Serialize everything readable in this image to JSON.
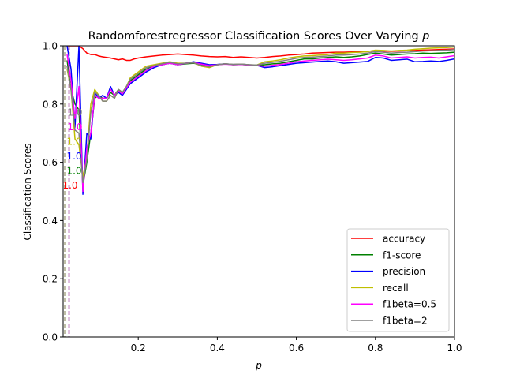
{
  "chart_data": {
    "type": "line",
    "title": "Randomforestregressor Classification Scores Over Varying p",
    "title_main": "Randomforestregressor Classification Scores Over Varying ",
    "title_var": "p",
    "xlabel": "p",
    "ylabel": "Classification Scores",
    "xlim": [
      0.01,
      1.0
    ],
    "ylim": [
      0.0,
      1.0
    ],
    "xticks": [
      0.2,
      0.4,
      0.6,
      0.8,
      1.0
    ],
    "xtick_labels": [
      "0.2",
      "0.4",
      "0.6",
      "0.8",
      "1.0"
    ],
    "yticks": [
      0.0,
      0.2,
      0.4,
      0.6,
      0.8,
      1.0
    ],
    "ytick_labels": [
      "0.0",
      "0.2",
      "0.4",
      "0.6",
      "0.8",
      "1.0"
    ],
    "grid": false,
    "legend_position": "lower-right",
    "x": [
      0.02,
      0.03,
      0.04,
      0.05,
      0.06,
      0.07,
      0.08,
      0.09,
      0.1,
      0.11,
      0.12,
      0.13,
      0.14,
      0.15,
      0.16,
      0.17,
      0.18,
      0.19,
      0.2,
      0.22,
      0.24,
      0.26,
      0.28,
      0.3,
      0.32,
      0.34,
      0.36,
      0.38,
      0.4,
      0.42,
      0.44,
      0.46,
      0.48,
      0.5,
      0.52,
      0.54,
      0.56,
      0.58,
      0.6,
      0.62,
      0.64,
      0.66,
      0.68,
      0.7,
      0.72,
      0.74,
      0.76,
      0.78,
      0.8,
      0.82,
      0.84,
      0.86,
      0.88,
      0.9,
      0.92,
      0.94,
      0.96,
      0.98,
      1.0
    ],
    "series": [
      {
        "name": "accuracy",
        "color": "#ff0000",
        "values": [
          1.0,
          1.0,
          1.0,
          1.0,
          0.99,
          0.975,
          0.97,
          0.97,
          0.965,
          0.962,
          0.96,
          0.958,
          0.955,
          0.952,
          0.955,
          0.95,
          0.95,
          0.955,
          0.958,
          0.962,
          0.965,
          0.968,
          0.97,
          0.972,
          0.97,
          0.968,
          0.965,
          0.963,
          0.962,
          0.963,
          0.96,
          0.962,
          0.96,
          0.958,
          0.96,
          0.963,
          0.965,
          0.968,
          0.97,
          0.972,
          0.975,
          0.976,
          0.977,
          0.978,
          0.978,
          0.979,
          0.98,
          0.981,
          0.983,
          0.982,
          0.981,
          0.982,
          0.983,
          0.984,
          0.985,
          0.986,
          0.987,
          0.988,
          0.989
        ]
      },
      {
        "name": "f1-score",
        "color": "#008000",
        "values": [
          0.95,
          0.85,
          0.8,
          0.78,
          0.52,
          0.6,
          0.7,
          0.82,
          0.83,
          0.82,
          0.82,
          0.84,
          0.83,
          0.85,
          0.84,
          0.86,
          0.88,
          0.89,
          0.9,
          0.92,
          0.93,
          0.935,
          0.94,
          0.935,
          0.938,
          0.94,
          0.935,
          0.93,
          0.935,
          0.938,
          0.935,
          0.936,
          0.934,
          0.932,
          0.935,
          0.938,
          0.94,
          0.945,
          0.95,
          0.955,
          0.955,
          0.958,
          0.96,
          0.962,
          0.96,
          0.962,
          0.965,
          0.97,
          0.975,
          0.972,
          0.968,
          0.97,
          0.972,
          0.973,
          0.975,
          0.974,
          0.975,
          0.976,
          0.978
        ]
      },
      {
        "name": "precision",
        "color": "#0000ff",
        "values": [
          1.0,
          0.92,
          0.72,
          1.0,
          0.49,
          0.7,
          0.68,
          0.84,
          0.82,
          0.83,
          0.82,
          0.86,
          0.83,
          0.84,
          0.83,
          0.85,
          0.87,
          0.88,
          0.89,
          0.91,
          0.925,
          0.935,
          0.94,
          0.935,
          0.94,
          0.945,
          0.94,
          0.935,
          0.936,
          0.938,
          0.936,
          0.937,
          0.935,
          0.933,
          0.925,
          0.928,
          0.932,
          0.936,
          0.94,
          0.942,
          0.944,
          0.946,
          0.948,
          0.945,
          0.94,
          0.942,
          0.944,
          0.946,
          0.96,
          0.958,
          0.95,
          0.952,
          0.954,
          0.945,
          0.946,
          0.948,
          0.946,
          0.95,
          0.955
        ]
      },
      {
        "name": "recall",
        "color": "#bfbf00",
        "values": [
          0.92,
          0.85,
          0.68,
          0.66,
          0.55,
          0.62,
          0.8,
          0.85,
          0.83,
          0.81,
          0.81,
          0.83,
          0.82,
          0.85,
          0.84,
          0.86,
          0.89,
          0.9,
          0.91,
          0.93,
          0.935,
          0.94,
          0.945,
          0.94,
          0.94,
          0.942,
          0.93,
          0.925,
          0.935,
          0.938,
          0.936,
          0.937,
          0.935,
          0.934,
          0.945,
          0.948,
          0.952,
          0.958,
          0.962,
          0.965,
          0.966,
          0.968,
          0.97,
          0.975,
          0.975,
          0.977,
          0.978,
          0.98,
          0.985,
          0.984,
          0.982,
          0.984,
          0.985,
          0.988,
          0.99,
          0.992,
          0.993,
          0.994,
          0.996
        ]
      },
      {
        "name": "f1beta=0.5",
        "color": "#ff00ff",
        "values": [
          0.97,
          0.88,
          0.75,
          0.86,
          0.5,
          0.65,
          0.7,
          0.83,
          0.82,
          0.82,
          0.82,
          0.85,
          0.83,
          0.845,
          0.835,
          0.855,
          0.875,
          0.885,
          0.895,
          0.915,
          0.93,
          0.935,
          0.94,
          0.935,
          0.94,
          0.942,
          0.937,
          0.932,
          0.935,
          0.937,
          0.935,
          0.936,
          0.934,
          0.932,
          0.93,
          0.933,
          0.936,
          0.94,
          0.945,
          0.948,
          0.95,
          0.952,
          0.954,
          0.952,
          0.95,
          0.952,
          0.955,
          0.958,
          0.968,
          0.965,
          0.958,
          0.96,
          0.962,
          0.958,
          0.96,
          0.961,
          0.958,
          0.962,
          0.966
        ]
      },
      {
        "name": "f1beta=2",
        "color": "#808080",
        "values": [
          0.93,
          0.85,
          0.71,
          0.7,
          0.53,
          0.61,
          0.77,
          0.84,
          0.83,
          0.81,
          0.81,
          0.83,
          0.82,
          0.85,
          0.84,
          0.86,
          0.885,
          0.895,
          0.905,
          0.925,
          0.932,
          0.938,
          0.943,
          0.938,
          0.94,
          0.942,
          0.932,
          0.928,
          0.935,
          0.938,
          0.936,
          0.937,
          0.935,
          0.934,
          0.94,
          0.943,
          0.947,
          0.952,
          0.957,
          0.96,
          0.961,
          0.963,
          0.965,
          0.968,
          0.968,
          0.97,
          0.972,
          0.975,
          0.98,
          0.978,
          0.975,
          0.977,
          0.978,
          0.98,
          0.982,
          0.983,
          0.984,
          0.985,
          0.987
        ]
      }
    ],
    "vlines": [
      {
        "x": 0.015,
        "color": "#ff0000"
      },
      {
        "x": 0.015,
        "color": "#008000"
      },
      {
        "x": 0.015,
        "color": "#0000ff"
      },
      {
        "x": 0.015,
        "color": "#bfbf00"
      },
      {
        "x": 0.025,
        "color": "#ff00ff"
      },
      {
        "x": 0.025,
        "color": "#808080"
      }
    ],
    "annotations": [
      {
        "text": "1.0",
        "x": 0.028,
        "y": 0.51,
        "color": "#ff0000"
      },
      {
        "text": "1.0",
        "x": 0.038,
        "y": 0.56,
        "color": "#008000"
      },
      {
        "text": "1.0",
        "x": 0.038,
        "y": 0.61,
        "color": "#0000ff"
      },
      {
        "text": "1.0",
        "x": 0.038,
        "y": 0.66,
        "color": "#bfbf00"
      },
      {
        "text": "1.0",
        "x": 0.04,
        "y": 0.71,
        "color": "#ff00ff"
      },
      {
        "text": "1.0",
        "x": 0.04,
        "y": 0.76,
        "color": "#808080"
      }
    ]
  }
}
